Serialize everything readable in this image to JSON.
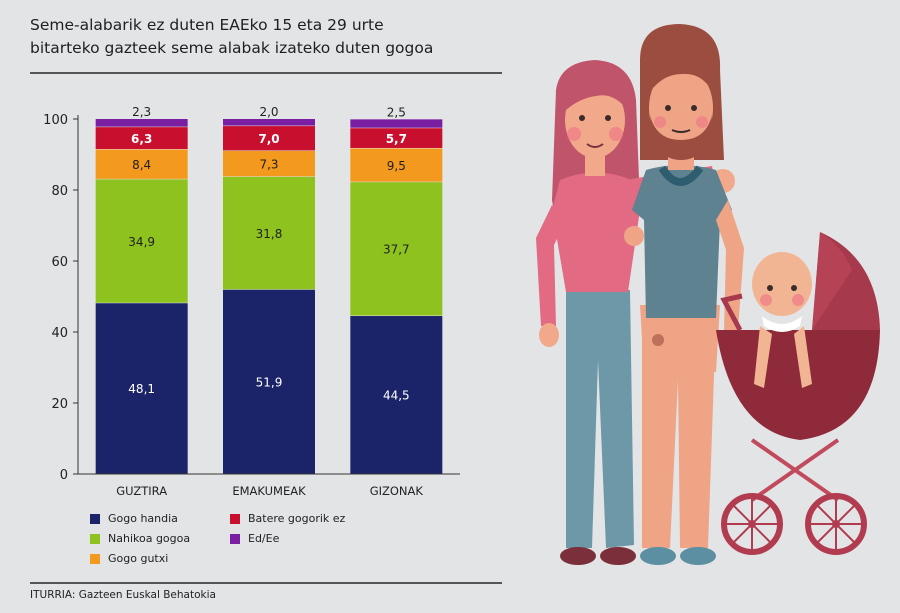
{
  "chart_data": {
    "type": "bar",
    "stacked": true,
    "title": "Seme-alabarik ez duten EAEko 15 eta 29 urte bitarteko gazteek seme alabak izateko duten gogoa",
    "categories": [
      "GUZTIRA",
      "EMAKUMEAK",
      "GIZONAK"
    ],
    "ylim": [
      0,
      100
    ],
    "yticks": [
      0,
      20,
      40,
      60,
      80,
      100
    ],
    "legend_position": "bottom",
    "series": [
      {
        "name": "Gogo handia",
        "color": "#1b2468",
        "values": [
          48.1,
          51.9,
          44.5
        ],
        "labels": [
          "48,1",
          "51,9",
          "44,5"
        ],
        "label_color": "#ffffff"
      },
      {
        "name": "Nahikoa gogoa",
        "color": "#8dc21f",
        "values": [
          34.9,
          31.8,
          37.7
        ],
        "labels": [
          "34,9",
          "31,8",
          "37,7"
        ],
        "label_color": "#1f1f1f"
      },
      {
        "name": "Gogo gutxi",
        "color": "#f39a1e",
        "values": [
          8.4,
          7.3,
          9.5
        ],
        "labels": [
          "8,4",
          "7,3",
          "9,5"
        ],
        "label_color": "#1f1f1f"
      },
      {
        "name": "Batere gogorik ez",
        "color": "#c8102e",
        "values": [
          6.3,
          7.0,
          5.7
        ],
        "labels": [
          "6,3",
          "7,0",
          "5,7"
        ],
        "label_color": "#ffffff"
      },
      {
        "name": "Ed/Ee",
        "color": "#7b1fa2",
        "values": [
          2.3,
          2.0,
          2.5
        ],
        "labels": [
          "2,3",
          "2,0",
          "2,5"
        ],
        "label_color": "#1f1f1f"
      }
    ]
  },
  "header": {
    "title_line1": "Seme-alabarik ez duten EAEko 15 eta 29 urte",
    "title_line2": "bitarteko gazteek seme alabak izateko duten gogoa"
  },
  "legend": {
    "items": [
      "Gogo handia",
      "Batere gogorik ez",
      "Nahikoa gogoa",
      "Ed/Ee",
      "Gogo gutxi"
    ]
  },
  "footer": {
    "source": "ITURRIA:  Gazteen Euskal Behatokia"
  }
}
